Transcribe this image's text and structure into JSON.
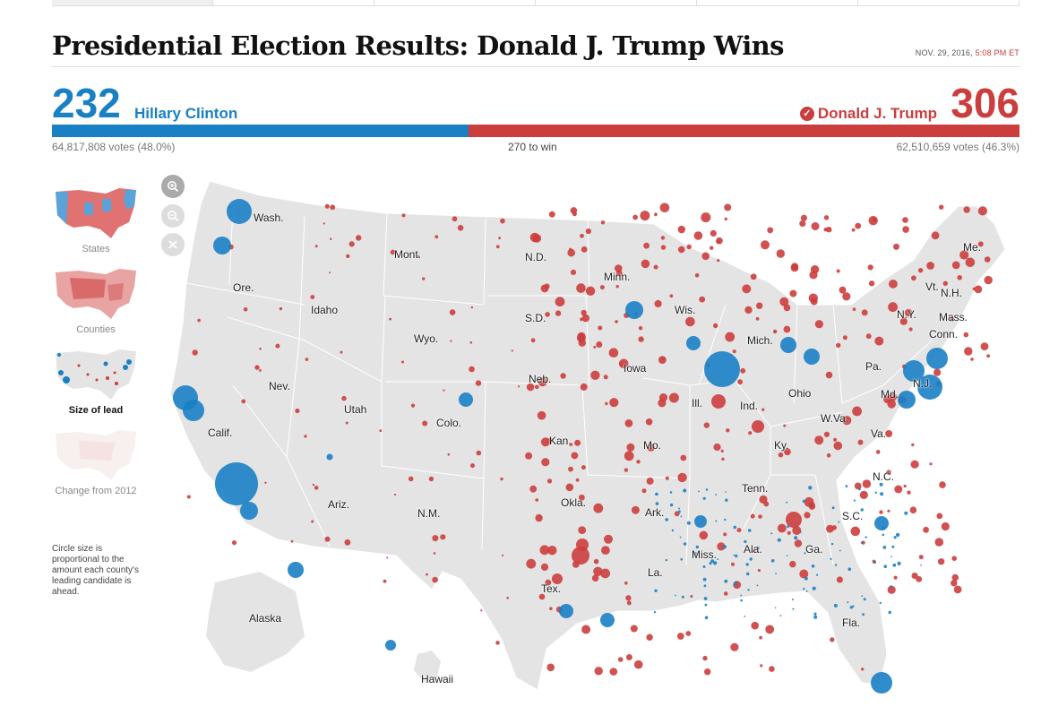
{
  "headline": "Presidential Election Results: Donald J. Trump Wins",
  "timestamp": {
    "date": "NOV. 29, 2016,",
    "time": "5:08 PM ET"
  },
  "colors": {
    "dem": "#1a80c4",
    "rep": "#cc3d3d",
    "land": "#e4e4e4"
  },
  "dem": {
    "electoral": "232",
    "name": "Hillary Clinton",
    "votes": "64,817,808 votes (48.0%)",
    "electoral_share": 0.431
  },
  "rep": {
    "electoral": "306",
    "name": "Donald J. Trump",
    "votes": "62,510,659 votes (46.3%)",
    "winner": true
  },
  "to_win": "270 to win",
  "map_views": [
    {
      "label": "States",
      "selected": false
    },
    {
      "label": "Counties",
      "selected": false
    },
    {
      "label": "Size of lead",
      "selected": true
    },
    {
      "label": "Change from 2012",
      "selected": false
    }
  ],
  "caption": "Circle size is proportional to the amount each county's leading candidate is ahead.",
  "zoom_controls": [
    "zoom-in-icon",
    "zoom-out-icon",
    "reset-icon"
  ],
  "state_labels": [
    "Wash.",
    "Ore.",
    "Calif.",
    "Nev.",
    "Idaho",
    "Mont.",
    "Wyo.",
    "Utah",
    "Colo.",
    "Ariz.",
    "N.M.",
    "N.D.",
    "S.D.",
    "Neb.",
    "Kan.",
    "Okla.",
    "Tex.",
    "Minn.",
    "Iowa",
    "Mo.",
    "Ark.",
    "La.",
    "Wis.",
    "Ill.",
    "Mich.",
    "Ind.",
    "Ohio",
    "Ky.",
    "Tenn.",
    "Miss.",
    "Ala.",
    "Ga.",
    "Fla.",
    "S.C.",
    "N.C.",
    "Va.",
    "W.Va.",
    "Pa.",
    "N.Y.",
    "Md.",
    "N.J.",
    "Conn.",
    "Mass.",
    "Vt.",
    "N.H.",
    "Me.",
    "Alaska",
    "Hawaii"
  ]
}
